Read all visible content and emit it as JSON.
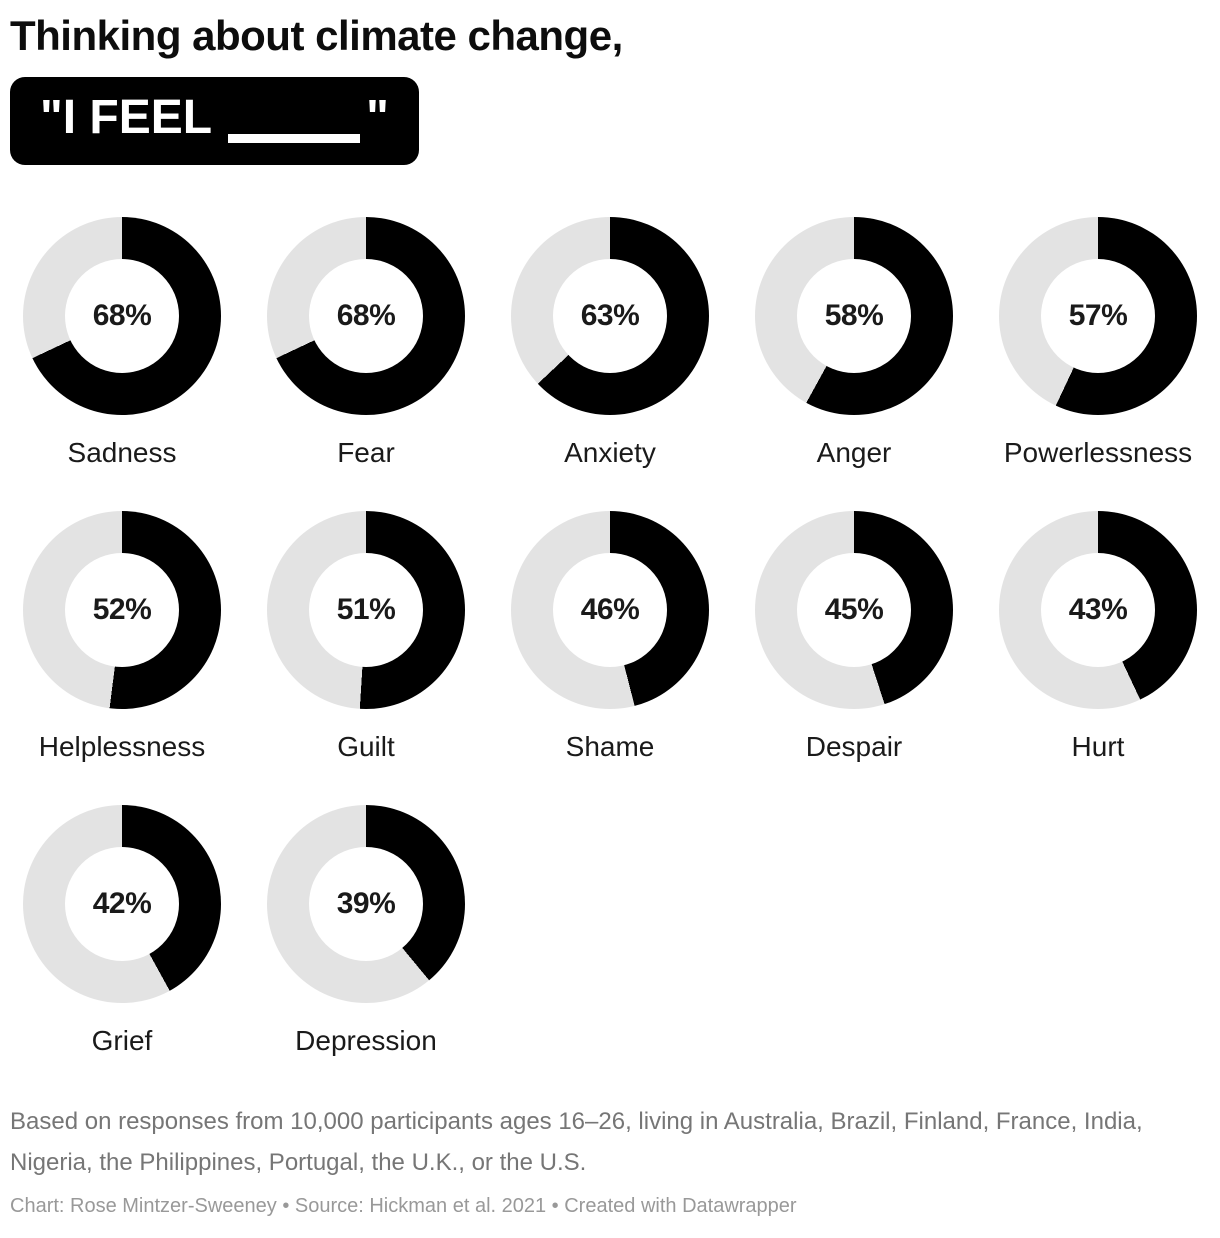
{
  "header": {
    "title": "Thinking about climate change,",
    "badge": {
      "text_start": "\"I FEEL",
      "text_end": "\""
    }
  },
  "chart_data": {
    "type": "pie",
    "variant": "donut-small-multiples",
    "unit": "%",
    "layout": {
      "columns": 5,
      "start_angle_deg": 0,
      "direction": "clockwise",
      "legend": "none",
      "value_label_position": "center"
    },
    "colors": {
      "filled": "#000000",
      "remainder": "#e3e3e3",
      "value_text": "#1a1a1a"
    },
    "series": [
      {
        "label": "Sadness",
        "value": 68,
        "display": "68%"
      },
      {
        "label": "Fear",
        "value": 68,
        "display": "68%"
      },
      {
        "label": "Anxiety",
        "value": 63,
        "display": "63%"
      },
      {
        "label": "Anger",
        "value": 58,
        "display": "58%"
      },
      {
        "label": "Powerlessness",
        "value": 57,
        "display": "57%"
      },
      {
        "label": "Helplessness",
        "value": 52,
        "display": "52%"
      },
      {
        "label": "Guilt",
        "value": 51,
        "display": "51%"
      },
      {
        "label": "Shame",
        "value": 46,
        "display": "46%"
      },
      {
        "label": "Despair",
        "value": 45,
        "display": "45%"
      },
      {
        "label": "Hurt",
        "value": 43,
        "display": "43%"
      },
      {
        "label": "Grief",
        "value": 42,
        "display": "42%"
      },
      {
        "label": "Depression",
        "value": 39,
        "display": "39%"
      }
    ]
  },
  "footer": {
    "notes": "Based on responses from 10,000 participants ages 16–26, living in Australia, Brazil, Finland, France, India, Nigeria, the Philippines, Portugal, the U.K., or the U.S.",
    "byline": "Chart: Rose Mintzer-Sweeney • Source: Hickman et al. 2021 • Created with Datawrapper"
  }
}
